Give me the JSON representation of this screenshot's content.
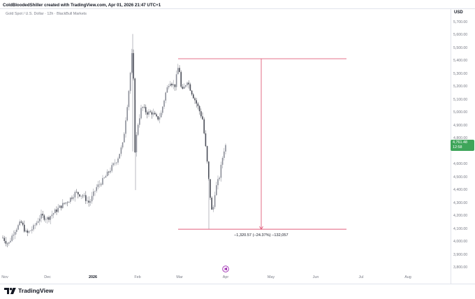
{
  "header": {
    "attribution": "ColdBloodedShiller created with TradingView.com, Apr 01, 2026 21:47 UTC+1"
  },
  "symbol": {
    "legend": "Gold Spot / U.S. Dollar · 12h · BlackBull Markets"
  },
  "price_scale": {
    "currency": "USD",
    "ticks": [
      "5,700.00",
      "5,600.00",
      "5,500.00",
      "5,400.00",
      "5,300.00",
      "5,200.00",
      "5,100.00",
      "5,000.00",
      "4,900.00",
      "4,800.00",
      "4,600.00",
      "4,500.00",
      "4,400.00",
      "4,300.00",
      "4,200.00",
      "4,100.00",
      "4,000.00",
      "3,900.00",
      "3,800.00"
    ],
    "current_price": "4,761.48",
    "countdown": "12:58"
  },
  "time_scale": {
    "ticks": [
      {
        "label": "Nov",
        "bold": false
      },
      {
        "label": "Dec",
        "bold": false
      },
      {
        "label": "2026",
        "bold": true
      },
      {
        "label": "Feb",
        "bold": false
      },
      {
        "label": "Mar",
        "bold": false
      },
      {
        "label": "Apr",
        "bold": false
      },
      {
        "label": "May",
        "bold": false
      },
      {
        "label": "Jun",
        "bold": false
      },
      {
        "label": "Jul",
        "bold": false
      },
      {
        "label": "Aug",
        "bold": false
      }
    ]
  },
  "measurement": {
    "label": "−1,320.57 (−24.37%) −132,057",
    "from_price": 5418,
    "to_price": 4097,
    "color": "#e05d7a"
  },
  "colors": {
    "up_candle": "#8a8d97",
    "down_candle": "#4a4d57",
    "current_price": "#3ea55a",
    "grid": "#f0f3fa"
  },
  "icons": {
    "replay": "replay-icon",
    "logo": "tradingview-logo-icon"
  },
  "footer": {
    "brand": "TradingView"
  }
}
